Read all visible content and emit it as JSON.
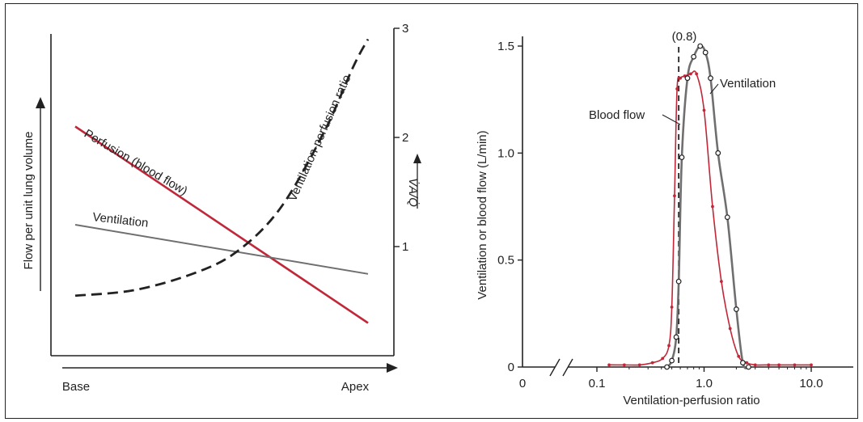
{
  "colors": {
    "perfusion": "#c0283a",
    "ventilation": "#6f6f6f",
    "axis": "#222222",
    "dash": "#222222"
  },
  "chart_data": [
    {
      "type": "line",
      "xlabel": "",
      "ylabel": "Flow per unit lung volume",
      "y2label": "V̇A/Q̇",
      "x_tick_labels": [
        "Base",
        "Apex"
      ],
      "x": [
        0,
        1
      ],
      "ylim": [
        0,
        3
      ],
      "y2lim": [
        0,
        3
      ],
      "y2_ticks": [
        1,
        2,
        3
      ],
      "series": [
        {
          "name": "Perfusion (blood flow)",
          "axis": "left",
          "x": [
            0,
            1
          ],
          "y": [
            2.1,
            0.3
          ]
        },
        {
          "name": "Ventilation",
          "axis": "left",
          "x": [
            0,
            1
          ],
          "y": [
            1.2,
            0.75
          ]
        },
        {
          "name": "Ventilation-perfusion ratio",
          "axis": "right",
          "x": [
            0,
            0.2,
            0.4,
            0.55,
            0.7,
            0.85,
            0.95,
            1.0
          ],
          "y": [
            0.55,
            0.6,
            0.75,
            0.95,
            1.35,
            2.05,
            2.65,
            2.9
          ]
        }
      ]
    },
    {
      "type": "line",
      "xlabel": "Ventilation-perfusion ratio",
      "ylabel": "Ventilation or blood flow (L/min)",
      "x_scale": "log",
      "x_ticks": [
        0.1,
        1.0,
        10.0
      ],
      "x_tick_labels": [
        "0.1",
        "1.0",
        "10.0"
      ],
      "x_zero_label": "0",
      "ylim": [
        0,
        1.5
      ],
      "y_ticks": [
        0,
        0.5,
        1.0,
        1.5
      ],
      "y_tick_labels": [
        "0",
        "0.5",
        "1.0",
        "1.5"
      ],
      "vline": {
        "x": 0.58,
        "label": "(0.8)"
      },
      "series": [
        {
          "name": "Blood flow",
          "x": [
            0.13,
            0.18,
            0.25,
            0.33,
            0.41,
            0.47,
            0.5,
            0.53,
            0.56,
            0.6,
            0.66,
            0.75,
            0.85,
            1.0,
            1.2,
            1.45,
            1.75,
            2.1,
            2.5,
            3,
            4,
            5,
            7,
            10
          ],
          "y": [
            0.01,
            0.01,
            0.01,
            0.02,
            0.04,
            0.1,
            0.28,
            0.8,
            1.3,
            1.35,
            1.36,
            1.37,
            1.37,
            1.2,
            0.75,
            0.4,
            0.18,
            0.05,
            0.02,
            0.01,
            0.01,
            0.01,
            0.01,
            0.01
          ]
        },
        {
          "name": "Ventilation",
          "x": [
            0.45,
            0.5,
            0.55,
            0.58,
            0.62,
            0.7,
            0.8,
            0.92,
            1.03,
            1.15,
            1.35,
            1.65,
            2.0,
            2.3,
            2.6
          ],
          "y": [
            0.0,
            0.03,
            0.14,
            0.4,
            0.98,
            1.35,
            1.45,
            1.5,
            1.47,
            1.35,
            1.0,
            0.7,
            0.27,
            0.02,
            0.0
          ]
        }
      ]
    }
  ]
}
